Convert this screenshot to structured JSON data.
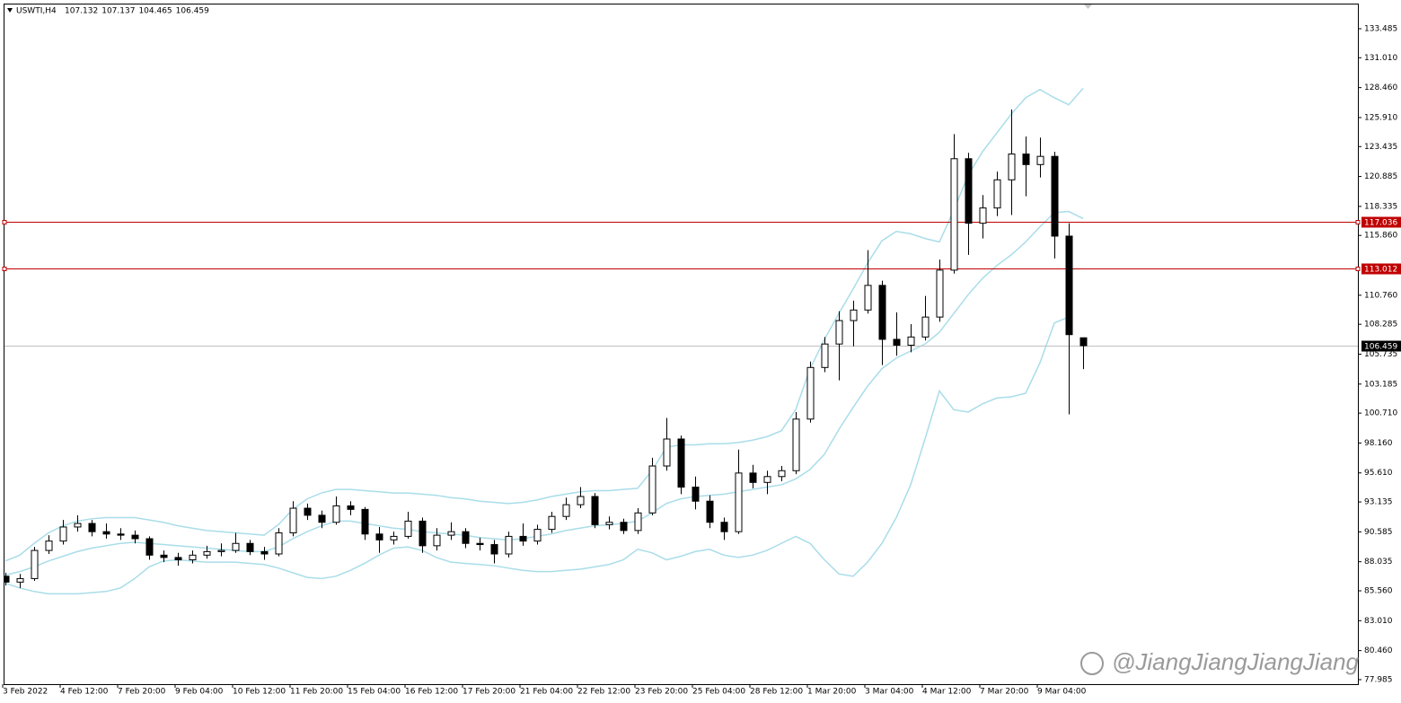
{
  "chart_data": {
    "type": "candlestick",
    "symbol": "USWTI,H4",
    "categories": [
      "3 Feb 2022",
      null,
      null,
      null,
      "4 Feb 12:00",
      null,
      null,
      null,
      "7 Feb 20:00",
      null,
      null,
      null,
      "9 Feb 04:00",
      null,
      null,
      null,
      "10 Feb 12:00",
      null,
      null,
      null,
      "11 Feb 20:00",
      null,
      null,
      null,
      "15 Feb 04:00",
      null,
      null,
      null,
      "16 Feb 12:00",
      null,
      null,
      null,
      "17 Feb 20:00",
      null,
      null,
      null,
      "21 Feb 04:00",
      null,
      null,
      null,
      "22 Feb 12:00",
      null,
      null,
      null,
      "23 Feb 20:00",
      null,
      null,
      null,
      "25 Feb 04:00",
      null,
      null,
      null,
      "28 Feb 12:00",
      null,
      null,
      null,
      "1 Mar 20:00",
      null,
      null,
      null,
      "3 Mar 04:00",
      null,
      null,
      null,
      "4 Mar 12:00",
      null,
      null,
      null,
      "7 Mar 20:00",
      null,
      null,
      null,
      "9 Mar 04:00",
      null,
      null,
      null
    ],
    "open": [
      86.8,
      86.3,
      86.6,
      89.0,
      89.8,
      91.0,
      91.3,
      90.6,
      90.4,
      90.3,
      90.0,
      88.6,
      88.4,
      88.2,
      88.6,
      88.9,
      89.0,
      89.6,
      88.9,
      88.7,
      90.5,
      92.6,
      92.0,
      91.4,
      92.8,
      92.5,
      90.4,
      89.9,
      90.2,
      91.5,
      89.4,
      90.3,
      90.6,
      89.6,
      89.5,
      88.7,
      90.2,
      89.8,
      90.8,
      91.9,
      92.9,
      93.6,
      91.2,
      91.4,
      90.7,
      92.2,
      96.2,
      98.5,
      94.4,
      93.2,
      91.4,
      90.6,
      95.6,
      94.8,
      95.3,
      95.8,
      100.2,
      104.6,
      106.6,
      108.6,
      109.5,
      111.6,
      107.0,
      106.5,
      107.2,
      108.9,
      112.9,
      122.4,
      116.9,
      118.2,
      120.6,
      122.8,
      121.9,
      122.6,
      115.8,
      107.132
    ],
    "high": [
      87.1,
      87.0,
      89.3,
      90.3,
      91.6,
      92.0,
      91.6,
      91.3,
      90.9,
      90.7,
      90.2,
      89.0,
      88.8,
      89.0,
      89.4,
      89.6,
      90.5,
      89.9,
      89.3,
      90.9,
      93.2,
      93.0,
      92.4,
      93.6,
      93.2,
      92.7,
      91.0,
      90.6,
      92.3,
      91.8,
      90.9,
      91.4,
      90.9,
      90.1,
      89.9,
      90.6,
      91.3,
      91.2,
      92.3,
      93.5,
      94.4,
      93.9,
      91.9,
      91.7,
      92.6,
      96.9,
      100.3,
      98.8,
      95.3,
      93.7,
      91.8,
      97.6,
      96.3,
      95.8,
      96.2,
      100.8,
      105.1,
      107.2,
      109.4,
      110.3,
      114.6,
      112.0,
      109.3,
      108.3,
      110.7,
      113.8,
      124.5,
      122.9,
      119.3,
      121.3,
      126.6,
      124.3,
      124.2,
      123.0,
      116.9,
      107.137
    ],
    "low": [
      86.0,
      85.8,
      86.4,
      88.7,
      89.5,
      90.6,
      90.2,
      90.0,
      89.9,
      89.6,
      88.2,
      88.0,
      87.7,
      87.9,
      88.3,
      88.5,
      88.8,
      88.6,
      88.2,
      88.5,
      90.2,
      91.6,
      90.9,
      91.2,
      92.0,
      89.9,
      88.8,
      89.5,
      90.0,
      88.8,
      89.0,
      89.9,
      89.2,
      89.0,
      87.9,
      88.4,
      89.4,
      89.5,
      90.5,
      91.6,
      92.6,
      90.9,
      90.8,
      90.4,
      90.4,
      92.0,
      95.8,
      93.8,
      92.5,
      90.9,
      89.9,
      90.4,
      94.3,
      93.8,
      94.9,
      95.5,
      99.9,
      104.2,
      103.5,
      106.4,
      109.2,
      104.8,
      105.6,
      105.9,
      106.9,
      108.5,
      112.6,
      114.2,
      115.6,
      117.5,
      117.6,
      119.2,
      120.8,
      113.9,
      100.6,
      104.465
    ],
    "close": [
      86.3,
      86.6,
      89.0,
      89.8,
      91.0,
      91.3,
      90.6,
      90.4,
      90.3,
      90.0,
      88.6,
      88.4,
      88.2,
      88.6,
      88.9,
      89.0,
      89.6,
      88.9,
      88.7,
      90.5,
      92.6,
      92.0,
      91.4,
      92.8,
      92.5,
      90.4,
      89.9,
      90.2,
      91.5,
      89.4,
      90.3,
      90.6,
      89.6,
      89.5,
      88.7,
      90.2,
      89.8,
      90.8,
      91.9,
      92.9,
      93.6,
      91.2,
      91.4,
      90.7,
      92.2,
      96.2,
      98.5,
      94.4,
      93.2,
      91.4,
      90.6,
      95.6,
      94.8,
      95.3,
      95.8,
      100.2,
      104.6,
      106.6,
      108.6,
      109.5,
      111.6,
      107.0,
      106.5,
      107.2,
      108.9,
      112.9,
      122.4,
      116.9,
      118.2,
      120.6,
      122.8,
      121.9,
      122.6,
      115.8,
      107.4,
      106.459
    ],
    "up_color": "#ffffff",
    "down_color": "#000000",
    "bands": [
      {
        "color": "#a9dde9",
        "values": [
          88.1,
          88.6,
          89.6,
          90.5,
          91.1,
          91.5,
          91.7,
          91.8,
          91.8,
          91.8,
          91.6,
          91.4,
          91.1,
          90.9,
          90.7,
          90.6,
          90.5,
          90.4,
          90.3,
          91.2,
          92.5,
          93.4,
          93.9,
          94.2,
          94.2,
          94.1,
          94.0,
          93.9,
          93.9,
          93.8,
          93.7,
          93.5,
          93.4,
          93.2,
          93.1,
          93.0,
          93.1,
          93.3,
          93.6,
          93.8,
          94.0,
          94.1,
          94.1,
          94.2,
          94.3,
          95.8,
          97.8,
          98.0,
          98.0,
          98.1,
          98.1,
          98.2,
          98.4,
          98.7,
          99.2,
          101.0,
          104.5,
          107.0,
          109.2,
          111.3,
          113.5,
          115.4,
          116.2,
          116.0,
          115.6,
          115.3,
          118.0,
          121.0,
          123.0,
          124.6,
          126.2,
          127.6,
          128.3,
          127.6,
          127.0,
          128.4
        ]
      },
      {
        "color": "#a9dde9",
        "values": [
          86.9,
          87.2,
          87.6,
          88.1,
          88.5,
          88.9,
          89.2,
          89.4,
          89.6,
          89.7,
          89.6,
          89.5,
          89.4,
          89.3,
          89.2,
          89.1,
          89.0,
          88.9,
          88.9,
          89.3,
          90.0,
          90.6,
          91.1,
          91.5,
          91.5,
          91.3,
          91.1,
          90.9,
          90.8,
          90.6,
          90.5,
          90.4,
          90.3,
          90.1,
          90.0,
          89.9,
          90.0,
          90.2,
          90.4,
          90.7,
          90.9,
          91.1,
          91.2,
          91.3,
          91.5,
          92.2,
          93.0,
          93.4,
          93.6,
          93.7,
          93.8,
          94.0,
          94.2,
          94.4,
          94.6,
          95.1,
          95.9,
          97.2,
          99.3,
          101.2,
          103.0,
          104.5,
          105.4,
          106.0,
          106.6,
          107.6,
          109.2,
          110.8,
          112.2,
          113.3,
          114.2,
          115.3,
          116.6,
          117.8,
          117.9,
          117.3
        ]
      },
      {
        "color": "#a9dde9",
        "values": [
          86.2,
          85.8,
          85.5,
          85.3,
          85.3,
          85.3,
          85.4,
          85.5,
          85.8,
          86.6,
          87.6,
          88.1,
          88.2,
          88.1,
          88.0,
          88.0,
          88.0,
          87.9,
          87.8,
          87.5,
          87.1,
          86.7,
          86.6,
          86.8,
          87.3,
          87.9,
          88.6,
          89.2,
          89.3,
          89.0,
          88.4,
          88.0,
          87.9,
          87.8,
          87.7,
          87.5,
          87.3,
          87.2,
          87.2,
          87.3,
          87.4,
          87.6,
          87.8,
          88.2,
          89.1,
          88.8,
          88.2,
          88.5,
          88.9,
          89.1,
          88.6,
          88.4,
          88.6,
          89.0,
          89.6,
          90.2,
          89.6,
          88.2,
          87.0,
          86.8,
          88.0,
          89.6,
          91.8,
          94.6,
          98.5,
          102.6,
          101.0,
          100.8,
          101.5,
          102.0,
          102.1,
          102.4,
          105.0,
          108.4,
          108.9,
          null
        ]
      }
    ],
    "levels": [
      {
        "value": 117.036,
        "color": "#c00000"
      },
      {
        "value": 113.012,
        "color": "#c00000"
      },
      {
        "value": 106.459,
        "color": "#c0c0c0"
      }
    ],
    "ylim": [
      77.6,
      135.55
    ],
    "yticks": [
      133.485,
      {
        "value": 131.01,
        "label": "131.010"
      },
      {
        "value": 128.46,
        "label": "128.460"
      },
      {
        "value": 125.91,
        "label": "125.910"
      },
      123.435,
      120.885,
      118.335,
      {
        "value": 115.86,
        "label": "115.860"
      },
      {
        "value": 110.76,
        "label": "110.760"
      },
      108.285,
      105.735,
      103.185,
      {
        "value": 100.71,
        "label": "100.710"
      },
      {
        "value": 98.16,
        "label": "98.160"
      },
      {
        "value": 95.61,
        "label": "95.610"
      },
      93.135,
      90.585,
      88.035,
      {
        "value": 85.56,
        "label": "85.560"
      },
      {
        "value": 83.01,
        "label": "83.010"
      },
      {
        "value": 80.46,
        "label": "80.460"
      },
      77.985
    ],
    "watermark": "@JiangJiangJiangJiang"
  }
}
